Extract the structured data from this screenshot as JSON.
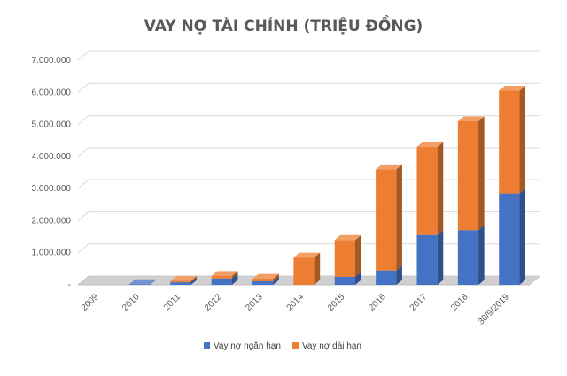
{
  "chart_data": {
    "type": "bar",
    "stacked": true,
    "three_d": true,
    "title": "VAY NỢ TÀI CHÍNH (TRIỆU ĐỒNG)",
    "xlabel": "",
    "ylabel": "",
    "categories": [
      "2009",
      "2010",
      "2011",
      "2012",
      "2013",
      "2014",
      "2015",
      "2016",
      "2017",
      "2018",
      "30/9/2019"
    ],
    "series": [
      {
        "name": "Vay nợ ngắn hạn",
        "color": "#4472C4",
        "values": [
          0,
          20000,
          80000,
          200000,
          110000,
          0,
          250000,
          450000,
          1550000,
          1700000,
          2850000
        ]
      },
      {
        "name": "Vay nợ dài hạn",
        "color": "#ED7D31",
        "values": [
          0,
          0,
          40000,
          80000,
          80000,
          850000,
          1150000,
          3150000,
          2750000,
          3400000,
          3200000
        ]
      }
    ],
    "ylim": [
      0,
      7000000
    ],
    "yticks": [
      0,
      1000000,
      2000000,
      3000000,
      4000000,
      5000000,
      6000000,
      7000000
    ],
    "ytick_labels": [
      "-",
      "1.000.000",
      "2.000.000",
      "3.000.000",
      "4.000.000",
      "5.000.000",
      "6.000.000",
      "7.000.000"
    ],
    "grid": true,
    "legend_position": "bottom"
  }
}
